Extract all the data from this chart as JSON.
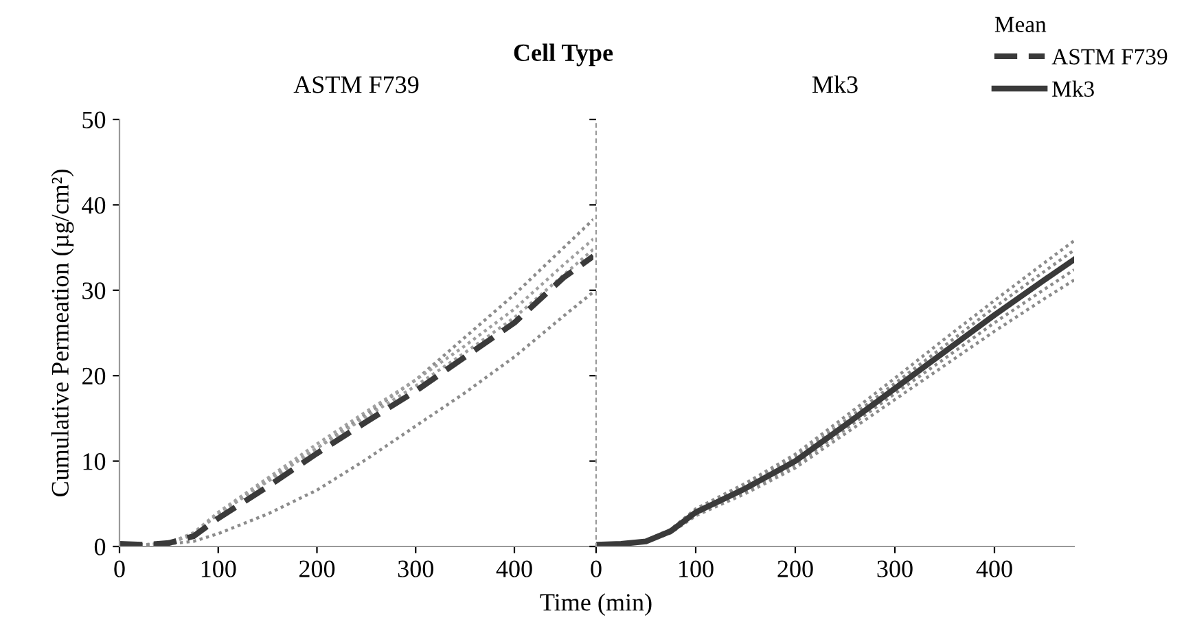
{
  "chart_data": [
    {
      "type": "line",
      "title": "ASTM F739",
      "annotations": [
        "Cell Type"
      ],
      "xlabel": "Time (min)",
      "ylabel": "Cumulative Permeation (µg/cm²)",
      "xlim": [
        0,
        480
      ],
      "xticks": [
        0,
        100,
        200,
        300,
        400
      ],
      "ylim": [
        0,
        50
      ],
      "yticks": [
        0,
        10,
        20,
        30,
        40,
        50
      ],
      "grid": false,
      "x": [
        0,
        25,
        50,
        75,
        100,
        150,
        200,
        250,
        300,
        350,
        400,
        450,
        480
      ],
      "series": [
        {
          "color": "#8c8c8c",
          "line_style": "dotted",
          "values": [
            0.3,
            0.2,
            0.4,
            1.4,
            3.8,
            7.8,
            11.5,
            15.5,
            19.5,
            24.5,
            29.5,
            35.0,
            38.3
          ]
        },
        {
          "color": "#a0a0a0",
          "line_style": "dotted",
          "values": [
            0.3,
            0.2,
            0.4,
            1.6,
            4.0,
            8.0,
            12.0,
            15.8,
            19.5,
            23.5,
            27.8,
            33.0,
            36.0
          ]
        },
        {
          "color": "#a0a0a0",
          "line_style": "dotted",
          "values": [
            0.3,
            0.2,
            0.4,
            1.5,
            3.8,
            7.6,
            11.5,
            15.2,
            18.8,
            22.7,
            26.8,
            31.8,
            34.8
          ]
        },
        {
          "color": "#8c8c8c",
          "line_style": "dotted",
          "values": [
            0.3,
            0.2,
            0.3,
            0.6,
            1.5,
            3.8,
            6.6,
            10.2,
            14.1,
            18.0,
            22.2,
            27.0,
            29.8
          ]
        },
        {
          "name": "ASTM F739",
          "color": "#3a3a3a",
          "line_style": "dashed",
          "values": [
            0.3,
            0.2,
            0.4,
            1.2,
            3.3,
            7.0,
            10.9,
            14.6,
            18.2,
            22.2,
            26.2,
            31.5,
            34.0
          ]
        }
      ]
    },
    {
      "type": "line",
      "title": "Mk3",
      "legend_title": "Mean",
      "legend": "top right",
      "tick_labels": "x",
      "xlim": [
        0,
        480
      ],
      "xticks": [
        0,
        100,
        200,
        300,
        400
      ],
      "ylim": [
        0,
        50
      ],
      "yticks": [
        0,
        10,
        20,
        30,
        40,
        50
      ],
      "grid": false,
      "x": [
        0,
        25,
        50,
        75,
        100,
        150,
        200,
        250,
        300,
        350,
        400,
        450,
        480
      ],
      "series": [
        {
          "color": "#8c8c8c",
          "line_style": "dotted",
          "values": [
            0.2,
            0.3,
            0.7,
            2.0,
            4.4,
            7.4,
            10.8,
            15.2,
            19.7,
            24.3,
            28.8,
            33.2,
            35.8
          ]
        },
        {
          "color": "#8c8c8c",
          "line_style": "dotted",
          "values": [
            0.2,
            0.3,
            0.6,
            1.9,
            4.2,
            7.1,
            10.4,
            14.7,
            19.1,
            23.5,
            28.0,
            32.2,
            34.7
          ]
        },
        {
          "color": "#8c8c8c",
          "line_style": "dotted",
          "values": [
            0.2,
            0.3,
            0.6,
            1.7,
            3.8,
            6.5,
            9.6,
            13.7,
            17.9,
            22.0,
            26.2,
            30.1,
            32.4
          ]
        },
        {
          "color": "#8c8c8c",
          "line_style": "dotted",
          "values": [
            0.2,
            0.3,
            0.5,
            1.6,
            3.6,
            6.2,
            9.2,
            13.2,
            17.2,
            21.2,
            25.2,
            29.0,
            31.2
          ]
        },
        {
          "name": "Mk3",
          "color": "#3a3a3a",
          "line_style": "solid",
          "values": [
            0.2,
            0.3,
            0.6,
            1.8,
            4.0,
            6.8,
            10.0,
            14.2,
            18.5,
            22.8,
            27.1,
            31.2,
            33.6
          ]
        }
      ]
    }
  ]
}
